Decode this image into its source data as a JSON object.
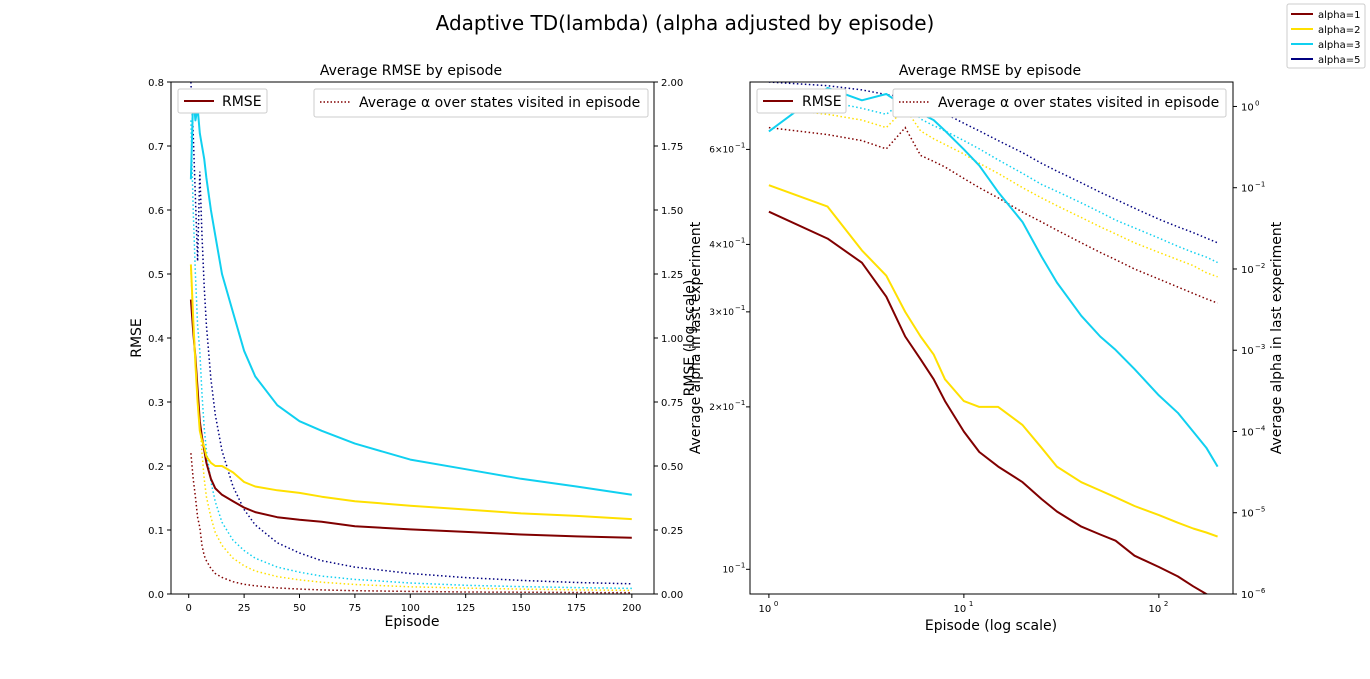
{
  "figure": {
    "suptitle": "Adaptive TD(lambda) (alpha adjusted by episode)",
    "legend": [
      {
        "label": "alpha=1",
        "color": "#800000"
      },
      {
        "label": "alpha=2",
        "color": "#FFE000"
      },
      {
        "label": "alpha=3",
        "color": "#10D0F0"
      },
      {
        "label": "alpha=5",
        "color": "#000080"
      }
    ]
  },
  "chart_data": [
    {
      "type": "line",
      "title": "Average RMSE by episode",
      "xlabel": "Episode",
      "ylabel": "RMSE",
      "y2label": "Average alpha in last experiment",
      "overlap_label": "RMSE (log scale)",
      "xlim": [
        -8,
        210
      ],
      "ylim": [
        0,
        0.8
      ],
      "y2lim": [
        0,
        2.0
      ],
      "xticks": [
        0,
        25,
        50,
        75,
        100,
        125,
        150,
        175,
        200
      ],
      "yticks": [
        "0.0",
        "0.1",
        "0.2",
        "0.3",
        "0.4",
        "0.5",
        "0.6",
        "0.7",
        "0.8"
      ],
      "y2ticks": [
        "0.00",
        "0.25",
        "0.50",
        "0.75",
        "1.00",
        "1.25",
        "1.50",
        "1.75",
        "2.00"
      ],
      "legend_left": "RMSE",
      "legend_right": "Average α over states visited in episode",
      "x": [
        1,
        2,
        3,
        4,
        5,
        6,
        7,
        8,
        10,
        12,
        15,
        20,
        25,
        30,
        40,
        50,
        60,
        75,
        100,
        125,
        150,
        175,
        200
      ],
      "rmse_series": [
        {
          "name": "alpha=1",
          "values": [
            0.46,
            0.41,
            0.37,
            0.32,
            0.27,
            0.245,
            0.225,
            0.205,
            0.18,
            0.165,
            0.155,
            0.145,
            0.135,
            0.128,
            0.12,
            0.116,
            0.113,
            0.106,
            0.101,
            0.097,
            0.093,
            0.09,
            0.088
          ]
        },
        {
          "name": "alpha=2",
          "values": [
            0.515,
            0.43,
            0.36,
            0.3,
            0.255,
            0.24,
            0.23,
            0.215,
            0.205,
            0.2,
            0.2,
            0.19,
            0.175,
            0.168,
            0.162,
            0.158,
            0.152,
            0.145,
            0.138,
            0.132,
            0.126,
            0.122,
            0.117
          ]
        },
        {
          "name": "alpha=3",
          "values": [
            0.648,
            0.78,
            0.74,
            0.76,
            0.72,
            0.7,
            0.68,
            0.65,
            0.6,
            0.56,
            0.5,
            0.44,
            0.38,
            0.34,
            0.295,
            0.27,
            0.255,
            0.235,
            0.21,
            0.195,
            0.18,
            0.168,
            0.155
          ]
        }
      ],
      "alpha_series": [
        {
          "name": "alpha=1",
          "values": [
            0.55,
            0.45,
            0.38,
            0.3,
            0.26,
            0.19,
            0.15,
            0.13,
            0.1,
            0.08,
            0.065,
            0.048,
            0.038,
            0.032,
            0.024,
            0.019,
            0.016,
            0.013,
            0.01,
            0.008,
            0.007,
            0.006,
            0.005
          ]
        },
        {
          "name": "alpha=2",
          "values": [
            1.27,
            1.05,
            0.9,
            0.76,
            0.68,
            0.55,
            0.45,
            0.38,
            0.3,
            0.24,
            0.19,
            0.14,
            0.11,
            0.09,
            0.068,
            0.055,
            0.046,
            0.037,
            0.028,
            0.023,
            0.019,
            0.016,
            0.014
          ]
        },
        {
          "name": "alpha=3",
          "values": [
            1.85,
            1.5,
            1.25,
            1.05,
            0.95,
            0.78,
            0.65,
            0.56,
            0.44,
            0.36,
            0.28,
            0.21,
            0.17,
            0.14,
            0.105,
            0.085,
            0.07,
            0.057,
            0.043,
            0.034,
            0.029,
            0.025,
            0.022
          ]
        },
        {
          "name": "alpha=5",
          "values": [
            2.0,
            1.8,
            1.55,
            1.3,
            1.65,
            1.4,
            1.2,
            1.05,
            0.84,
            0.7,
            0.56,
            0.42,
            0.33,
            0.27,
            0.2,
            0.16,
            0.13,
            0.105,
            0.08,
            0.064,
            0.053,
            0.045,
            0.04
          ]
        }
      ]
    },
    {
      "type": "line",
      "title": "Average RMSE by episode",
      "xlabel": "Episode (log scale)",
      "ylabel": "RMSE (log scale)",
      "y2label": "Average alpha in last experiment",
      "xscale": "log",
      "yscale": "log",
      "y2scale": "log",
      "xlim": [
        0.8,
        240
      ],
      "ylim": [
        0.09,
        0.8
      ],
      "y2lim": [
        1e-06,
        2.0
      ],
      "xticks": [
        1,
        10,
        100
      ],
      "yticks": [
        0.1,
        0.2,
        0.3,
        0.4,
        0.6
      ],
      "y2ticks": [
        1e-06,
        1e-05,
        0.0001,
        0.001,
        0.01,
        0.1,
        1
      ],
      "legend_left": "RMSE",
      "legend_right": "Average α over states visited in episode",
      "x": [
        1,
        2,
        3,
        4,
        5,
        6,
        7,
        8,
        10,
        12,
        15,
        20,
        25,
        30,
        40,
        50,
        60,
        75,
        100,
        125,
        150,
        175,
        200
      ],
      "rmse_series": [
        {
          "name": "alpha=1",
          "values": [
            0.46,
            0.41,
            0.37,
            0.32,
            0.27,
            0.245,
            0.225,
            0.205,
            0.18,
            0.165,
            0.155,
            0.145,
            0.135,
            0.128,
            0.12,
            0.116,
            0.113,
            0.106,
            0.101,
            0.097,
            0.093,
            0.09,
            0.088
          ]
        },
        {
          "name": "alpha=2",
          "values": [
            0.515,
            0.47,
            0.39,
            0.35,
            0.3,
            0.27,
            0.25,
            0.225,
            0.205,
            0.2,
            0.2,
            0.185,
            0.168,
            0.155,
            0.145,
            0.14,
            0.136,
            0.131,
            0.126,
            0.122,
            0.119,
            0.117,
            0.115
          ]
        },
        {
          "name": "alpha=3",
          "values": [
            0.648,
            0.78,
            0.74,
            0.76,
            0.72,
            0.7,
            0.68,
            0.65,
            0.6,
            0.56,
            0.5,
            0.44,
            0.38,
            0.34,
            0.295,
            0.27,
            0.255,
            0.235,
            0.21,
            0.195,
            0.18,
            0.168,
            0.155
          ]
        }
      ],
      "alpha_series": [
        {
          "name": "alpha=1",
          "values": [
            0.55,
            0.45,
            0.38,
            0.3,
            0.55,
            0.25,
            0.21,
            0.18,
            0.13,
            0.1,
            0.075,
            0.05,
            0.038,
            0.03,
            0.021,
            0.016,
            0.013,
            0.01,
            0.0075,
            0.006,
            0.005,
            0.0043,
            0.0038
          ]
        },
        {
          "name": "alpha=2",
          "values": [
            0.95,
            0.8,
            0.68,
            0.55,
            0.95,
            0.5,
            0.4,
            0.34,
            0.26,
            0.2,
            0.15,
            0.1,
            0.075,
            0.06,
            0.043,
            0.033,
            0.027,
            0.021,
            0.016,
            0.013,
            0.011,
            0.009,
            0.008
          ]
        },
        {
          "name": "alpha=3",
          "values": [
            1.3,
            1.15,
            0.95,
            0.8,
            1.2,
            0.7,
            0.58,
            0.5,
            0.38,
            0.3,
            0.22,
            0.15,
            0.11,
            0.09,
            0.065,
            0.05,
            0.04,
            0.032,
            0.024,
            0.019,
            0.016,
            0.014,
            0.012
          ]
        },
        {
          "name": "alpha=5",
          "values": [
            2.0,
            1.8,
            1.6,
            1.4,
            1.3,
            1.1,
            0.95,
            0.82,
            0.62,
            0.5,
            0.38,
            0.27,
            0.2,
            0.16,
            0.115,
            0.088,
            0.072,
            0.056,
            0.041,
            0.033,
            0.028,
            0.024,
            0.021
          ]
        }
      ]
    }
  ]
}
